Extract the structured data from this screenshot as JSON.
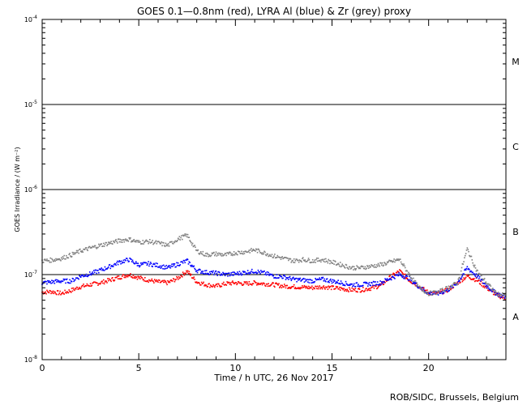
{
  "chart_data": {
    "type": "scatter",
    "title": "GOES 0.1—0.8nm (red), LYRA Al (blue) & Zr (grey) proxy",
    "xlabel": "Time / h UTC, 26 Nov 2017",
    "ylabel": "GOES Irradiance / (W m⁻²)",
    "xlim": [
      0,
      24
    ],
    "ylim": [
      1e-08,
      0.0001
    ],
    "yscale": "log",
    "x_ticks": [
      0,
      5,
      10,
      15,
      20
    ],
    "x_tick_labels": [
      "0",
      "5",
      "10",
      "15",
      "20"
    ],
    "y_ticks": [
      {
        "value": 1e-08,
        "base": "10",
        "exp": "-8"
      },
      {
        "value": 1e-07,
        "base": "10",
        "exp": "-7"
      },
      {
        "value": 1e-06,
        "base": "10",
        "exp": "-6"
      },
      {
        "value": 1e-05,
        "base": "10",
        "exp": "-5"
      },
      {
        "value": 0.0001,
        "base": "10",
        "exp": "-4"
      }
    ],
    "flare_class_lines": [
      1e-07,
      1e-06,
      1e-05
    ],
    "flare_classes": [
      {
        "label": "A",
        "value": 3.2e-08
      },
      {
        "label": "B",
        "value": 3.2e-07
      },
      {
        "label": "C",
        "value": 3.2e-06
      },
      {
        "label": "M",
        "value": 3.2e-05
      }
    ],
    "series": [
      {
        "color": "#ff0000",
        "x": [
          0,
          0.5,
          1,
          1.5,
          2,
          2.5,
          3,
          3.5,
          4,
          4.5,
          5,
          5.5,
          6,
          6.5,
          7,
          7.5,
          8,
          8.5,
          9,
          9.5,
          10,
          10.5,
          11,
          11.5,
          12,
          12.5,
          13,
          13.5,
          14,
          14.5,
          15,
          15.5,
          16,
          16.5,
          17,
          17.5,
          18,
          18.5,
          19,
          19.5,
          20,
          20.5,
          21,
          21.5,
          22,
          22.5,
          23,
          23.5,
          24
        ],
        "y": [
          6.2e-08,
          6.3e-08,
          6e-08,
          6.5e-08,
          7.2e-08,
          7.6e-08,
          8e-08,
          8.6e-08,
          9.3e-08,
          1e-07,
          9.2e-08,
          8.6e-08,
          8.2e-08,
          8e-08,
          9e-08,
          1.1e-07,
          8.2e-08,
          7.6e-08,
          7.3e-08,
          7.8e-08,
          8e-08,
          7.8e-08,
          8e-08,
          7.8e-08,
          7.6e-08,
          7.3e-08,
          7.2e-08,
          7.1e-08,
          7e-08,
          7.2e-08,
          7e-08,
          6.8e-08,
          6.6e-08,
          6.6e-08,
          6.9e-08,
          7.4e-08,
          9.2e-08,
          1.1e-07,
          8.6e-08,
          7.3e-08,
          6.1e-08,
          6e-08,
          6.6e-08,
          8e-08,
          9.6e-08,
          8.6e-08,
          7e-08,
          5.8e-08,
          5.2e-08
        ]
      },
      {
        "color": "#0000ff",
        "x": [
          0,
          0.5,
          1,
          1.5,
          2,
          2.5,
          3,
          3.5,
          4,
          4.5,
          5,
          5.5,
          6,
          6.5,
          7,
          7.5,
          8,
          8.5,
          9,
          9.5,
          10,
          10.5,
          11,
          11.5,
          12,
          12.5,
          13,
          13.5,
          14,
          14.5,
          15,
          15.5,
          16,
          16.5,
          17,
          17.5,
          18,
          18.5,
          19,
          19.5,
          20,
          20.5,
          21,
          21.5,
          22,
          22.5,
          23,
          23.5,
          24
        ],
        "y": [
          8e-08,
          8.2e-08,
          8.4e-08,
          8.4e-08,
          9.6e-08,
          1.02e-07,
          1.12e-07,
          1.24e-07,
          1.4e-07,
          1.5e-07,
          1.3e-07,
          1.34e-07,
          1.28e-07,
          1.2e-07,
          1.32e-07,
          1.45e-07,
          1.12e-07,
          1.06e-07,
          1.04e-07,
          1e-07,
          1.02e-07,
          1.06e-07,
          1.1e-07,
          1.04e-07,
          9.6e-08,
          9.4e-08,
          8.8e-08,
          8.6e-08,
          8.4e-08,
          8.8e-08,
          8.4e-08,
          8e-08,
          7.6e-08,
          7.6e-08,
          7.8e-08,
          8e-08,
          9e-08,
          1e-07,
          9e-08,
          7.2e-08,
          6e-08,
          6e-08,
          6.6e-08,
          8e-08,
          1.2e-07,
          9.6e-08,
          7.4e-08,
          6e-08,
          5.4e-08
        ]
      },
      {
        "color": "#808080",
        "x": [
          0,
          0.5,
          1,
          1.5,
          2,
          2.5,
          3,
          3.5,
          4,
          4.5,
          5,
          5.5,
          6,
          6.5,
          7,
          7.5,
          8,
          8.5,
          9,
          9.5,
          10,
          10.5,
          11,
          11.5,
          12,
          12.5,
          13,
          13.5,
          14,
          14.5,
          15,
          15.5,
          16,
          16.5,
          17,
          17.5,
          18,
          18.5,
          19,
          19.5,
          20,
          20.5,
          21,
          21.5,
          22,
          22.5,
          23,
          23.5,
          24
        ],
        "y": [
          1.45e-07,
          1.48e-07,
          1.55e-07,
          1.7e-07,
          1.9e-07,
          2.05e-07,
          2.2e-07,
          2.35e-07,
          2.5e-07,
          2.6e-07,
          2.4e-07,
          2.45e-07,
          2.35e-07,
          2.2e-07,
          2.6e-07,
          2.9e-07,
          1.9e-07,
          1.7e-07,
          1.75e-07,
          1.7e-07,
          1.8e-07,
          1.85e-07,
          1.95e-07,
          1.8e-07,
          1.65e-07,
          1.55e-07,
          1.45e-07,
          1.5e-07,
          1.45e-07,
          1.5e-07,
          1.4e-07,
          1.3e-07,
          1.2e-07,
          1.2e-07,
          1.25e-07,
          1.3e-07,
          1.4e-07,
          1.5e-07,
          1e-07,
          7e-08,
          6e-08,
          6.2e-08,
          7e-08,
          8e-08,
          2e-07,
          1.1e-07,
          8e-08,
          6e-08,
          5.6e-08
        ]
      }
    ]
  },
  "credit": "ROB/SIDC, Brussels, Belgium"
}
